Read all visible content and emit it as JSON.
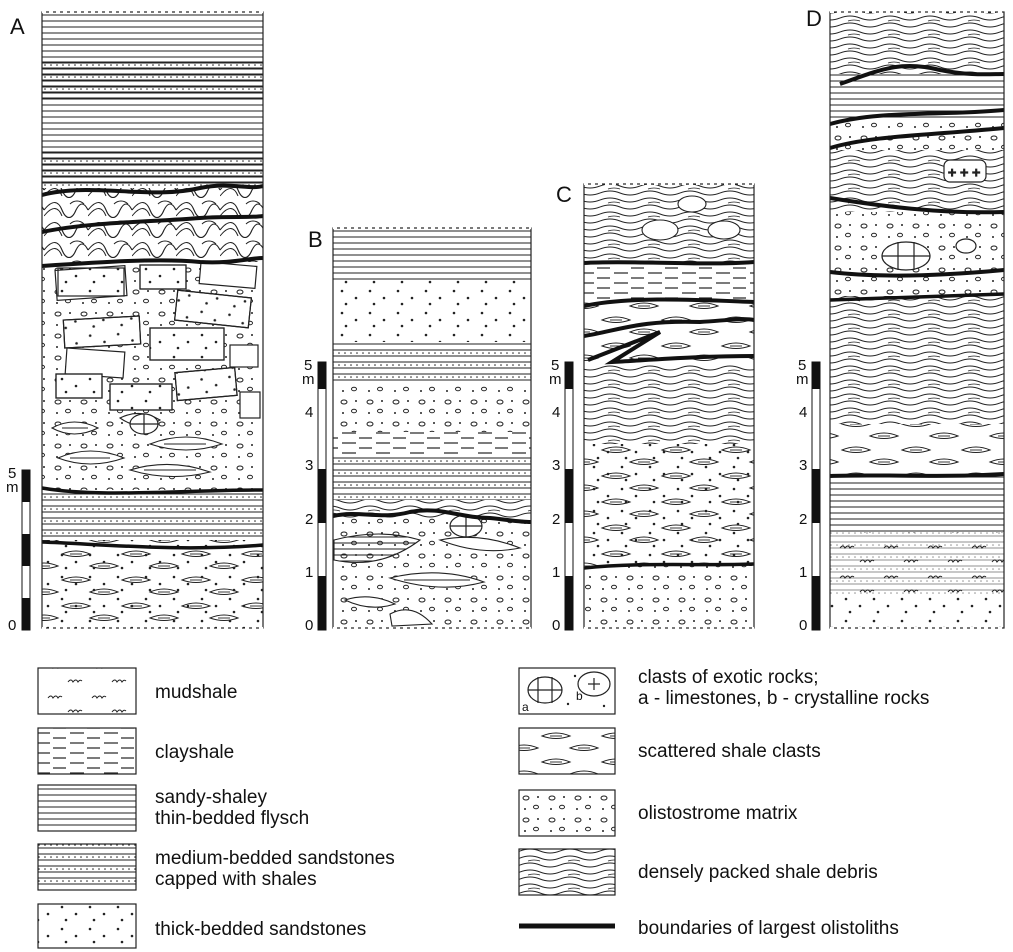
{
  "columns": [
    {
      "letter": "A"
    },
    {
      "letter": "B"
    },
    {
      "letter": "C"
    },
    {
      "letter": "D"
    }
  ],
  "scale": {
    "unit": "m",
    "ticks": [
      "0",
      "1",
      "2",
      "3",
      "4",
      "5"
    ]
  },
  "legend": {
    "mudshale": "mudshale",
    "clayshale": "clayshale",
    "flysch_1": "sandy-shaley",
    "flysch_2": "thin-bedded flysch",
    "medium_1": "medium-bedded sandstones",
    "medium_2": "capped with shales",
    "thick": "thick-bedded sandstones",
    "exotic_1": "clasts of exotic rocks;",
    "exotic_2": "a - limestones, b - crystalline rocks",
    "exotic_a": "a",
    "exotic_b": "b",
    "scattered": "scattered shale clasts",
    "matrix": "olistostrome matrix",
    "debris": "densely packed shale debris",
    "boundaries": "boundaries of largest olistoliths"
  }
}
